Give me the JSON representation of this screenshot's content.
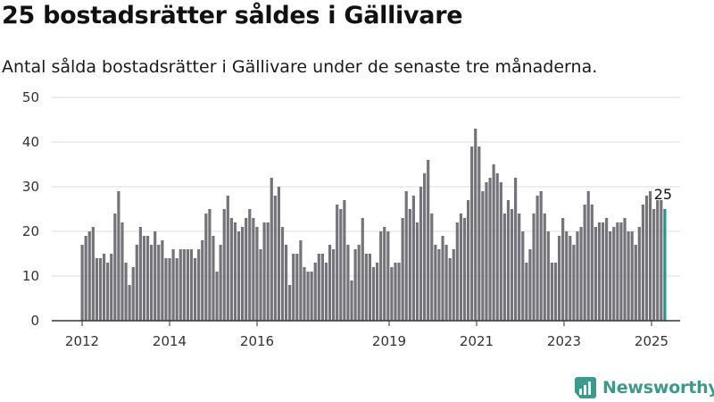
{
  "title": "25 bostadsrätter såldes i Gällivare",
  "subtitle": "Antal sålda bostadsrätter i Gällivare under de senaste tre månaderna.",
  "brand": "Newsworthy",
  "colors": {
    "bar": "#74737a",
    "highlight": "#24958a",
    "grid": "#dddddd",
    "axis": "#333333",
    "brand": "#3a9a8c"
  },
  "chart_data": {
    "type": "bar",
    "ylim": [
      0,
      50
    ],
    "yticks": [
      0,
      10,
      20,
      30,
      40,
      50
    ],
    "xtick_labels": [
      "2012",
      "2014",
      "2016",
      "2019",
      "2021",
      "2023",
      "2025"
    ],
    "grid": true,
    "highlight_label": "25",
    "values": [
      17,
      19,
      20,
      21,
      14,
      14,
      15,
      13,
      15,
      24,
      29,
      22,
      13,
      8,
      12,
      17,
      21,
      19,
      19,
      17,
      20,
      17,
      18,
      14,
      14,
      16,
      14,
      16,
      16,
      16,
      16,
      14,
      16,
      18,
      24,
      25,
      19,
      11,
      17,
      25,
      28,
      23,
      22,
      20,
      21,
      23,
      25,
      23,
      21,
      16,
      22,
      22,
      32,
      28,
      30,
      21,
      17,
      8,
      15,
      15,
      18,
      12,
      11,
      11,
      13,
      15,
      15,
      13,
      17,
      16,
      26,
      25,
      27,
      17,
      9,
      16,
      17,
      23,
      15,
      15,
      12,
      13,
      20,
      21,
      20,
      12,
      13,
      13,
      23,
      29,
      25,
      28,
      22,
      30,
      33,
      36,
      24,
      17,
      16,
      19,
      17,
      14,
      16,
      22,
      24,
      23,
      27,
      39,
      43,
      39,
      29,
      31,
      32,
      35,
      33,
      31,
      24,
      27,
      25,
      32,
      24,
      20,
      13,
      16,
      24,
      28,
      29,
      24,
      20,
      13,
      13,
      19,
      23,
      20,
      19,
      17,
      20,
      21,
      26,
      29,
      26,
      21,
      22,
      22,
      23,
      20,
      21,
      22,
      22,
      23,
      20,
      20,
      17,
      21,
      26,
      28,
      29,
      25,
      27,
      27,
      25
    ]
  }
}
